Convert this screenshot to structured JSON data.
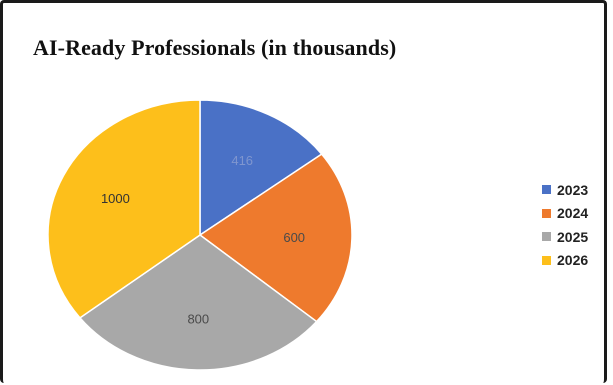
{
  "chart_data": {
    "type": "pie",
    "title": "AI-Ready Professionals (in thousands)",
    "categories": [
      "2023",
      "2024",
      "2025",
      "2026"
    ],
    "values": [
      416,
      600,
      800,
      1000
    ],
    "colors": [
      "#4a71c6",
      "#ee7a2d",
      "#a8a8a8",
      "#fdbf1b"
    ],
    "label_colors": [
      "#7f96cf",
      "#4a4a4a",
      "#4a4a4a",
      "#333333"
    ],
    "start": "12 o'clock, clockwise",
    "legend": "right"
  }
}
